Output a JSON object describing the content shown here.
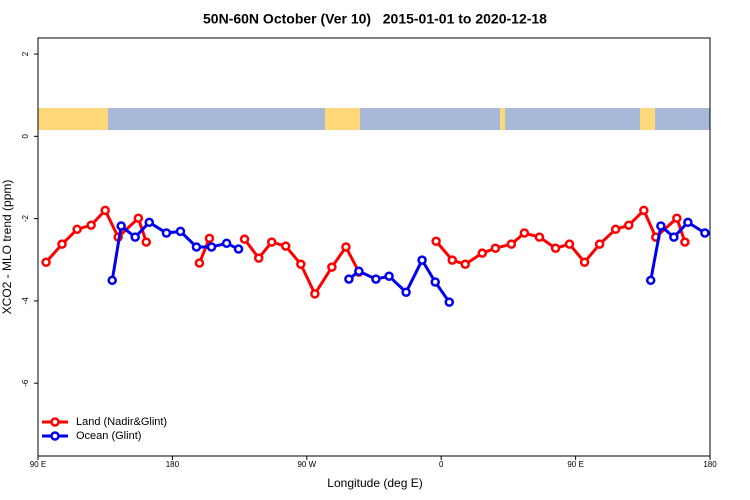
{
  "chart_data": {
    "type": "line",
    "title": "50N-60N October (Ver 10)   2015-01-01 to 2020-12-18",
    "x_label": "Longitude (deg E)",
    "y_label": "XCO2 - MLO trend (ppm)",
    "xlim": [
      90,
      540
    ],
    "xticks": [
      {
        "value": 90,
        "label": "90 E"
      },
      180,
      {
        "value": 270,
        "label": "90 W"
      },
      {
        "value": 360,
        "label": "0"
      },
      {
        "value": 450,
        "label": "90 E"
      },
      {
        "value": 540,
        "label": "180"
      }
    ],
    "ylim": [
      -7.77,
      2.39
    ],
    "yticks": [
      2,
      0,
      -2,
      -4,
      -6
    ],
    "legend": "bottom-left",
    "series": [
      {
        "name": "Land (Nadir&Glint)",
        "color": "#ff0000",
        "x": [
          95.4,
          106.1,
          116.2,
          125.6,
          135.0,
          143.7,
          157.2,
          162.5,
          null,
          198.1,
          204.8,
          null,
          228.3,
          237.8,
          246.5,
          255.9,
          266.0,
          275.4,
          286.8,
          296.2,
          304.9,
          null,
          356.6,
          367.4,
          376.1,
          387.5,
          396.3,
          407.0,
          415.7,
          425.8,
          436.6,
          445.9,
          456.0,
          466.1,
          476.8,
          485.6,
          495.7,
          503.7,
          517.8,
          523.2
        ],
        "values": [
          -3.06,
          -2.62,
          -2.26,
          -2.16,
          -1.8,
          -2.45,
          -1.99,
          -2.57,
          null,
          -3.08,
          -2.48,
          null,
          -2.5,
          -2.96,
          -2.57,
          -2.67,
          -3.11,
          -3.83,
          -3.18,
          -2.69,
          -3.3,
          null,
          -2.55,
          -3.01,
          -3.11,
          -2.84,
          -2.72,
          -2.62,
          -2.35,
          -2.45,
          -2.72,
          -2.62,
          -3.06,
          -2.62,
          -2.26,
          -2.16,
          -1.8,
          -2.45,
          -1.99,
          -2.57
        ]
      },
      {
        "name": "Ocean (Glint)",
        "color": "#0000ee",
        "x": [
          139.7,
          145.7,
          155.1,
          164.5,
          176.0,
          185.4,
          196.1,
          206.2,
          216.3,
          224.3,
          null,
          298.2,
          304.9,
          316.3,
          325.1,
          336.5,
          347.2,
          356.0,
          365.4,
          null,
          500.3,
          507.1,
          515.8,
          525.2,
          536.6
        ],
        "values": [
          -3.5,
          -2.18,
          -2.45,
          -2.09,
          -2.35,
          -2.31,
          -2.69,
          -2.69,
          -2.6,
          -2.74,
          null,
          -3.47,
          -3.28,
          -3.47,
          -3.4,
          -3.79,
          -3.01,
          -3.54,
          -4.03,
          null,
          -3.5,
          -2.18,
          -2.45,
          -2.09,
          -2.35
        ]
      }
    ]
  }
}
